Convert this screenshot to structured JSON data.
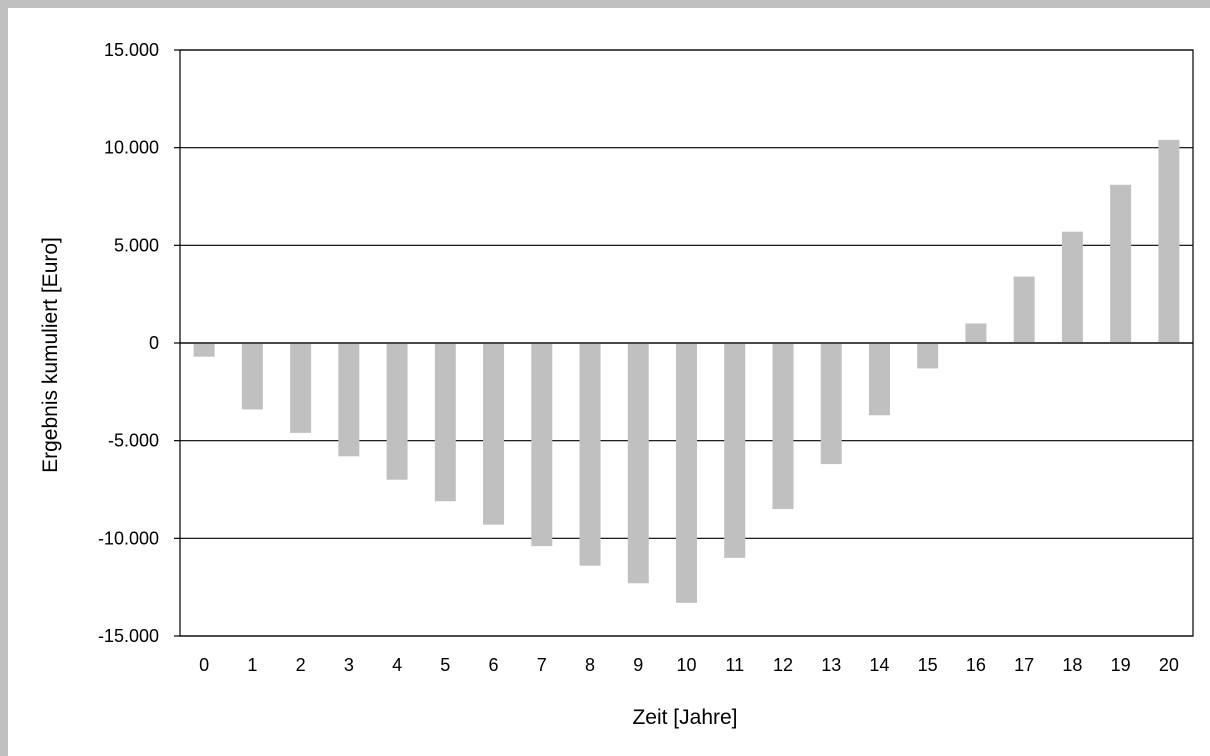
{
  "chart_data": {
    "type": "bar",
    "title": "",
    "xlabel": "Zeit [Jahre]",
    "ylabel": "Ergebnis kumuliert [Euro]",
    "ylim": [
      -15000,
      15000
    ],
    "y_ticks": [
      15000,
      10000,
      5000,
      0,
      -5000,
      -10000,
      -15000
    ],
    "y_tick_labels": [
      "15.000",
      "10.000",
      "5.000",
      "0",
      "-5.000",
      "-10.000",
      "-15.000"
    ],
    "grid": true,
    "legend": "none",
    "bar_color": "#c0c0c0",
    "categories": [
      "0",
      "1",
      "2",
      "3",
      "4",
      "5",
      "6",
      "7",
      "8",
      "9",
      "10",
      "11",
      "12",
      "13",
      "14",
      "15",
      "16",
      "17",
      "18",
      "19",
      "20"
    ],
    "values": [
      -700,
      -3400,
      -4600,
      -5800,
      -7000,
      -8100,
      -9300,
      -10400,
      -11400,
      -12300,
      -13300,
      -11000,
      -8500,
      -6200,
      -3700,
      -1300,
      1000,
      3400,
      5700,
      8100,
      10400
    ]
  }
}
